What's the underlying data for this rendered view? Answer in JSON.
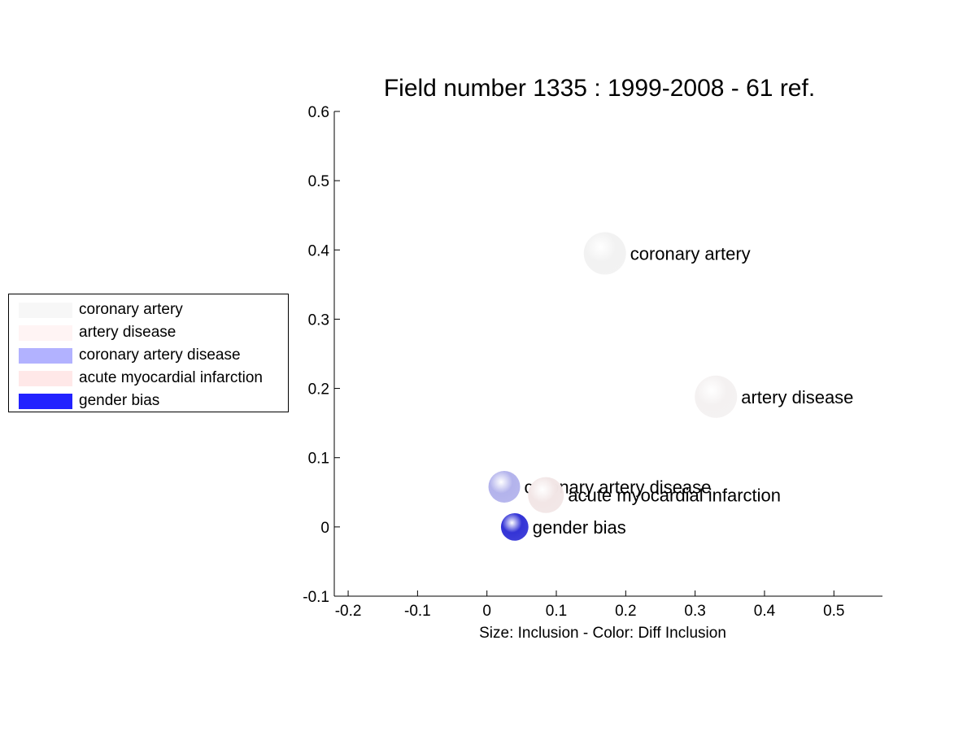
{
  "chart_data": {
    "type": "scatter",
    "title": "Field number 1335 : 1999-2008  - 61 ref.",
    "xlabel": "Size: Inclusion - Color: Diff Inclusion",
    "ylabel": "",
    "xlim": [
      -0.22,
      0.57
    ],
    "ylim": [
      -0.1,
      0.6
    ],
    "xticks": [
      -0.2,
      -0.1,
      0,
      0.1,
      0.2,
      0.3,
      0.4,
      0.5
    ],
    "xtick_labels": [
      "-0.2",
      "-0.1",
      "0",
      "0.1",
      "0.2",
      "0.3",
      "0.4",
      "0.5"
    ],
    "yticks": [
      -0.1,
      0,
      0.1,
      0.2,
      0.3,
      0.4,
      0.5,
      0.6
    ],
    "ytick_labels": [
      "-0.1",
      "0",
      "0.1",
      "0.2",
      "0.3",
      "0.4",
      "0.5",
      "0.6"
    ],
    "grid": false,
    "legend_position": "left",
    "points": [
      {
        "label": "coronary artery",
        "x": 0.17,
        "y": 0.395,
        "size": 1.0,
        "color": "#f2f2f2"
      },
      {
        "label": "artery disease",
        "x": 0.33,
        "y": 0.188,
        "size": 1.0,
        "color": "#f4f1f1"
      },
      {
        "label": "coronary artery disease",
        "x": 0.025,
        "y": 0.058,
        "size": 0.75,
        "color": "#b3b3ec"
      },
      {
        "label": "acute myocardial infarction",
        "x": 0.085,
        "y": 0.046,
        "size": 0.85,
        "color": "#f2e6e6"
      },
      {
        "label": "gender bias",
        "x": 0.04,
        "y": 0.0,
        "size": 0.65,
        "color": "#3333d6"
      }
    ]
  },
  "legend": {
    "items": [
      {
        "label": "coronary artery",
        "color": "#f7f7f7"
      },
      {
        "label": "artery disease",
        "color": "#fff4f4"
      },
      {
        "label": "coronary artery disease",
        "color": "#b2b2ff"
      },
      {
        "label": "acute myocardial infarction",
        "color": "#ffe8e8"
      },
      {
        "label": "gender bias",
        "color": "#2222ff"
      }
    ]
  }
}
